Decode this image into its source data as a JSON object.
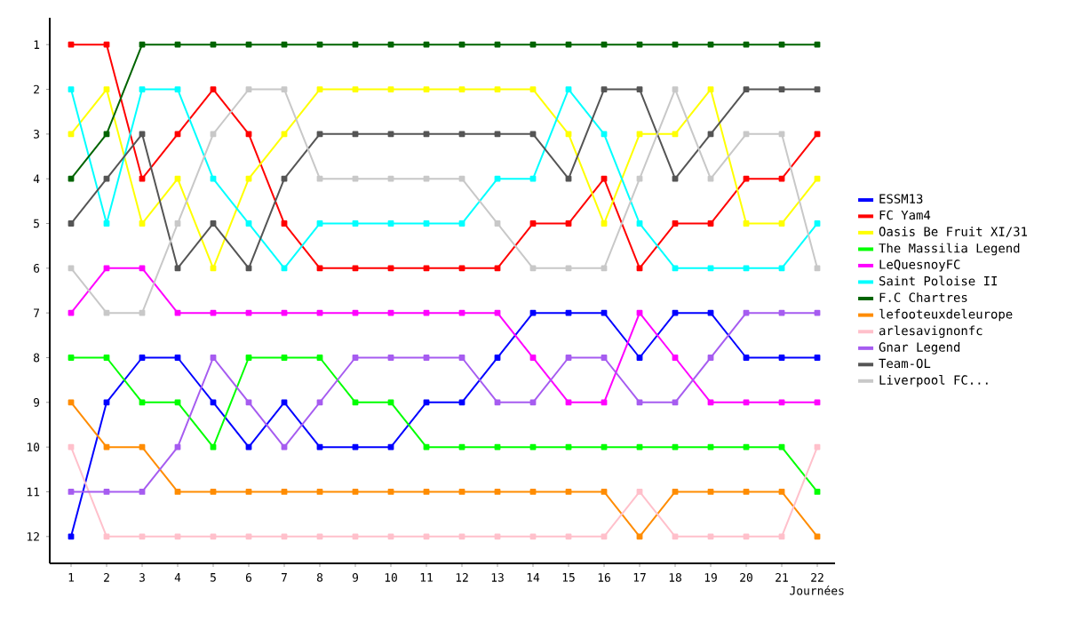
{
  "chart_data": {
    "type": "line",
    "xlabel": "Journées",
    "x": [
      1,
      2,
      3,
      4,
      5,
      6,
      7,
      8,
      9,
      10,
      11,
      12,
      13,
      14,
      15,
      16,
      17,
      18,
      19,
      20,
      21,
      22
    ],
    "xlim": [
      0.4,
      22.5
    ],
    "xticks": [
      1,
      2,
      3,
      4,
      5,
      6,
      7,
      8,
      9,
      10,
      11,
      12,
      13,
      14,
      15,
      16,
      17,
      18,
      19,
      20,
      21,
      22
    ],
    "ylim": [
      12.6,
      0.4
    ],
    "yticks": [
      1,
      2,
      3,
      4,
      5,
      6,
      7,
      8,
      9,
      10,
      11,
      12
    ],
    "grid": false,
    "legend": "right",
    "marker": "square",
    "line_style": "solid",
    "series": [
      {
        "name": "ESSM13",
        "color": "#0000ff",
        "values": [
          12,
          9,
          8,
          8,
          9,
          10,
          9,
          10,
          10,
          10,
          9,
          9,
          8,
          7,
          7,
          7,
          8,
          7,
          7,
          8,
          8,
          8
        ]
      },
      {
        "name": "FC Yam4",
        "color": "#ff0000",
        "values": [
          1,
          1,
          4,
          3,
          2,
          3,
          5,
          6,
          6,
          6,
          6,
          6,
          6,
          5,
          5,
          4,
          6,
          5,
          5,
          4,
          4,
          3
        ]
      },
      {
        "name": "Oasis Be Fruit XI/31",
        "color": "#ffff00",
        "values": [
          3,
          2,
          5,
          4,
          6,
          4,
          3,
          2,
          2,
          2,
          2,
          2,
          2,
          2,
          3,
          5,
          3,
          3,
          2,
          5,
          5,
          4
        ]
      },
      {
        "name": "The Massilia Legend",
        "color": "#00ff00",
        "values": [
          8,
          8,
          9,
          9,
          10,
          8,
          8,
          8,
          9,
          9,
          10,
          10,
          10,
          10,
          10,
          10,
          10,
          10,
          10,
          10,
          10,
          11
        ]
      },
      {
        "name": "LeQuesnoyFC",
        "color": "#ff00ff",
        "values": [
          7,
          6,
          6,
          7,
          7,
          7,
          7,
          7,
          7,
          7,
          7,
          7,
          7,
          8,
          9,
          9,
          7,
          8,
          9,
          9,
          9,
          9
        ]
      },
      {
        "name": "Saint Poloise II",
        "color": "#00ffff",
        "values": [
          2,
          5,
          2,
          2,
          4,
          5,
          6,
          5,
          5,
          5,
          5,
          5,
          4,
          4,
          2,
          3,
          5,
          6,
          6,
          6,
          6,
          5
        ]
      },
      {
        "name": "F.C Chartres",
        "color": "#006400",
        "values": [
          4,
          3,
          1,
          1,
          1,
          1,
          1,
          1,
          1,
          1,
          1,
          1,
          1,
          1,
          1,
          1,
          1,
          1,
          1,
          1,
          1,
          1
        ]
      },
      {
        "name": "lefooteuxdeleurope",
        "color": "#ff8c00",
        "values": [
          9,
          10,
          10,
          11,
          11,
          11,
          11,
          11,
          11,
          11,
          11,
          11,
          11,
          11,
          11,
          11,
          12,
          11,
          11,
          11,
          11,
          12
        ]
      },
      {
        "name": "arlesavignonfc",
        "color": "#ffc0cb",
        "values": [
          10,
          12,
          12,
          12,
          12,
          12,
          12,
          12,
          12,
          12,
          12,
          12,
          12,
          12,
          12,
          12,
          11,
          12,
          12,
          12,
          12,
          10
        ]
      },
      {
        "name": "Gnar Legend",
        "color": "#a65cf0",
        "values": [
          11,
          11,
          11,
          10,
          8,
          9,
          10,
          9,
          8,
          8,
          8,
          8,
          9,
          9,
          8,
          8,
          9,
          9,
          8,
          7,
          7,
          7
        ]
      },
      {
        "name": "Team-OL",
        "color": "#555555",
        "values": [
          5,
          4,
          3,
          6,
          5,
          6,
          4,
          3,
          3,
          3,
          3,
          3,
          3,
          3,
          4,
          2,
          2,
          4,
          3,
          2,
          2,
          2
        ]
      },
      {
        "name": "Liverpool FC...",
        "color": "#c8c8c8",
        "values": [
          6,
          7,
          7,
          5,
          3,
          2,
          2,
          4,
          4,
          4,
          4,
          4,
          5,
          6,
          6,
          6,
          4,
          2,
          4,
          3,
          3,
          6
        ]
      }
    ]
  }
}
